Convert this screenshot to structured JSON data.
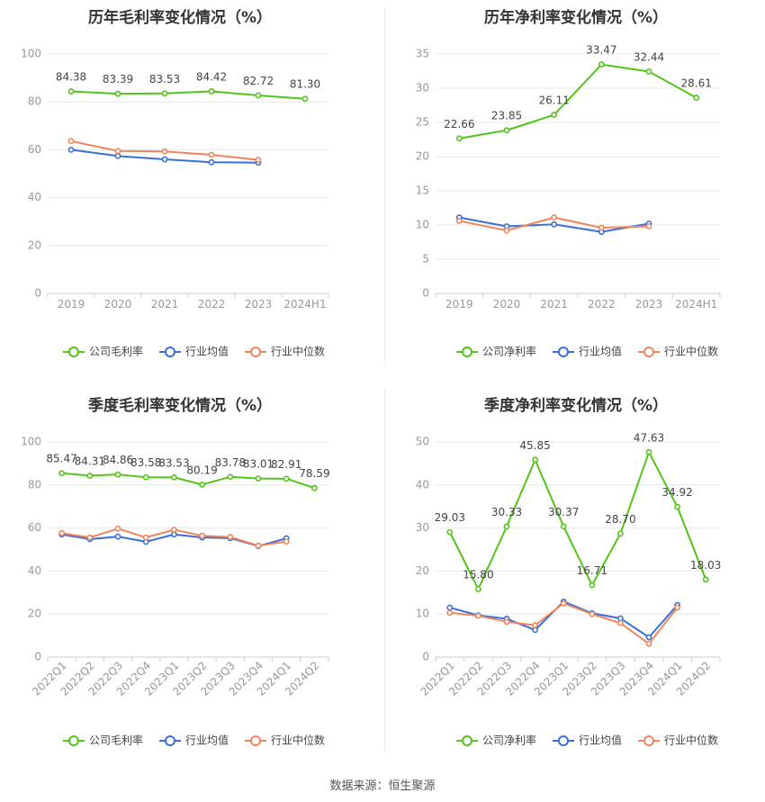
{
  "source_label": "数据来源：恒生聚源",
  "colors": {
    "company": "#52c41a",
    "avg": "#3a6fd8",
    "median": "#f0845c",
    "grid": "#e8e8e8",
    "axis": "#999999"
  },
  "chart_data": [
    {
      "type": "line",
      "title": "历年毛利率变化情况（%）",
      "categories": [
        "2019",
        "2020",
        "2021",
        "2022",
        "2023",
        "2024H1"
      ],
      "ylim": [
        0,
        100
      ],
      "yticks": [
        0,
        20,
        40,
        60,
        80,
        100
      ],
      "rotate_labels": false,
      "series": [
        {
          "name": "公司毛利率",
          "role": "company",
          "values": [
            84.38,
            83.39,
            83.53,
            84.42,
            82.72,
            81.3
          ],
          "labels": [
            "84.38",
            "83.39",
            "83.53",
            "84.42",
            "82.72",
            "81.30"
          ]
        },
        {
          "name": "行业均值",
          "role": "avg",
          "values": [
            60.0,
            57.4,
            56.0,
            54.8,
            54.6,
            null
          ]
        },
        {
          "name": "行业中位数",
          "role": "median",
          "values": [
            63.6,
            59.5,
            59.3,
            57.9,
            55.8,
            null
          ]
        }
      ]
    },
    {
      "type": "line",
      "title": "历年净利率变化情况（%）",
      "categories": [
        "2019",
        "2020",
        "2021",
        "2022",
        "2023",
        "2024H1"
      ],
      "ylim": [
        0,
        35
      ],
      "yticks": [
        0,
        5,
        10,
        15,
        20,
        25,
        30,
        35
      ],
      "rotate_labels": false,
      "series": [
        {
          "name": "公司净利率",
          "role": "company",
          "values": [
            22.66,
            23.85,
            26.11,
            33.47,
            32.44,
            28.61
          ],
          "labels": [
            "22.66",
            "23.85",
            "26.11",
            "33.47",
            "32.44",
            "28.61"
          ]
        },
        {
          "name": "行业均值",
          "role": "avg",
          "values": [
            11.1,
            9.8,
            10.1,
            9.0,
            10.2,
            null
          ]
        },
        {
          "name": "行业中位数",
          "role": "median",
          "values": [
            10.6,
            9.2,
            11.1,
            9.6,
            9.8,
            null
          ]
        }
      ]
    },
    {
      "type": "line",
      "title": "季度毛利率变化情况（%）",
      "categories": [
        "2022Q1",
        "2022Q2",
        "2022Q3",
        "2022Q4",
        "2023Q1",
        "2023Q2",
        "2023Q3",
        "2023Q4",
        "2024Q1",
        "2024Q2"
      ],
      "ylim": [
        0,
        100
      ],
      "yticks": [
        0,
        20,
        40,
        60,
        80,
        100
      ],
      "rotate_labels": true,
      "series": [
        {
          "name": "公司毛利率",
          "role": "company",
          "values": [
            85.47,
            84.31,
            84.86,
            83.58,
            83.53,
            80.19,
            83.78,
            83.01,
            82.91,
            78.59
          ],
          "labels": [
            "85.47",
            "84.31",
            "84.86",
            "83.58",
            "83.53",
            "80.19",
            "83.78",
            "83.01",
            "82.91",
            "78.59"
          ]
        },
        {
          "name": "行业均值",
          "role": "avg",
          "values": [
            57.0,
            54.8,
            56.0,
            53.6,
            57.0,
            55.6,
            55.3,
            51.6,
            55.2,
            null
          ]
        },
        {
          "name": "行业中位数",
          "role": "median",
          "values": [
            57.6,
            55.6,
            59.7,
            55.6,
            59.2,
            56.4,
            55.8,
            51.8,
            53.7,
            null
          ]
        }
      ]
    },
    {
      "type": "line",
      "title": "季度净利率变化情况（%）",
      "categories": [
        "2022Q1",
        "2022Q2",
        "2022Q3",
        "2022Q4",
        "2023Q1",
        "2023Q2",
        "2023Q3",
        "2023Q4",
        "2024Q1",
        "2024Q2"
      ],
      "ylim": [
        0,
        50
      ],
      "yticks": [
        0,
        10,
        20,
        30,
        40,
        50
      ],
      "rotate_labels": true,
      "series": [
        {
          "name": "公司净利率",
          "role": "company",
          "values": [
            29.03,
            15.8,
            30.33,
            45.85,
            30.37,
            16.71,
            28.7,
            47.63,
            34.92,
            18.03
          ],
          "labels": [
            "29.03",
            "15.80",
            "30.33",
            "45.85",
            "30.37",
            "16.71",
            "28.70",
            "47.63",
            "34.92",
            "18.03"
          ]
        },
        {
          "name": "行业均值",
          "role": "avg",
          "values": [
            11.5,
            9.7,
            8.9,
            6.3,
            12.9,
            10.2,
            9.0,
            4.6,
            12.1,
            null
          ]
        },
        {
          "name": "行业中位数",
          "role": "median",
          "values": [
            10.3,
            9.6,
            8.2,
            7.4,
            12.5,
            10.0,
            7.9,
            3.1,
            11.5,
            null
          ]
        }
      ]
    }
  ]
}
